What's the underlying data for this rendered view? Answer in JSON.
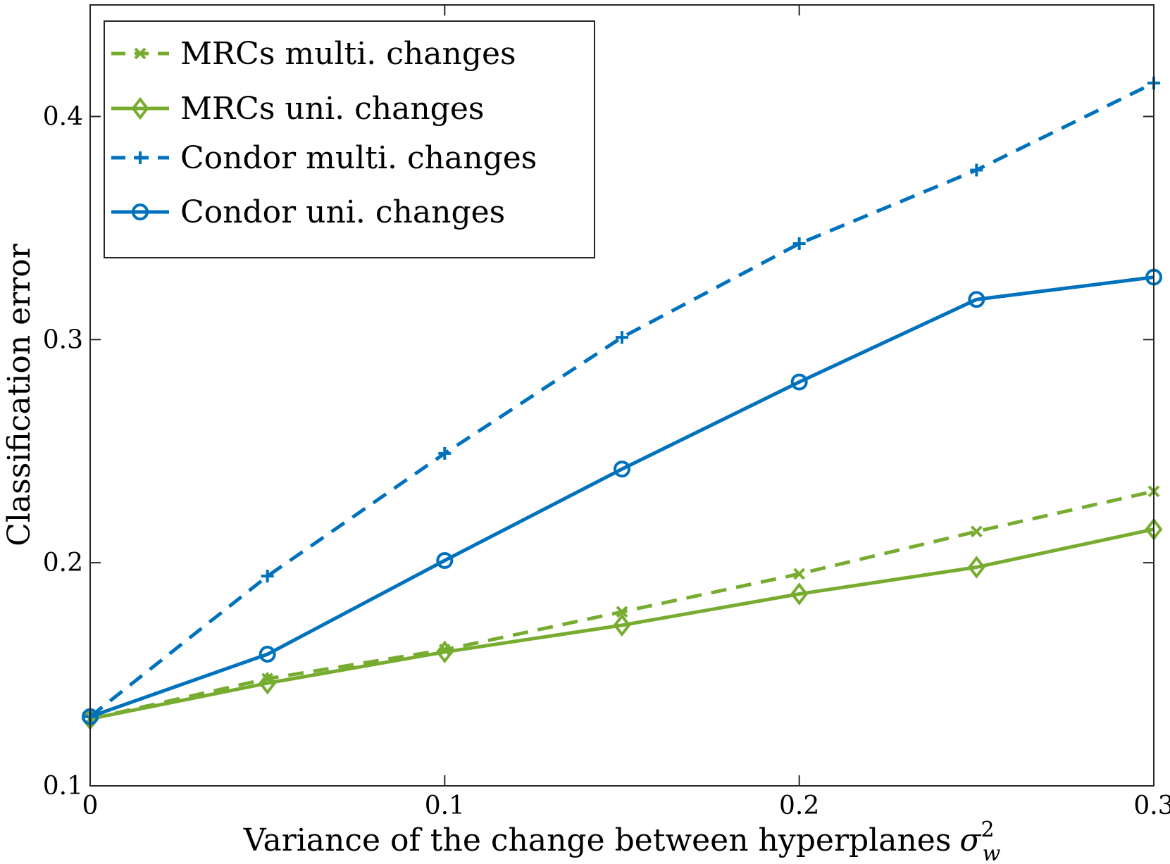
{
  "chart_data": {
    "type": "line",
    "xlabel": "Variance of the change between hyperplanes",
    "xlabel_symbol": "σ",
    "xlabel_sub": "w",
    "xlabel_sup": "2",
    "ylabel": "Classification error",
    "xlim": [
      0,
      0.3
    ],
    "ylim": [
      0.1,
      0.45
    ],
    "x_ticks": [
      0,
      0.1,
      0.2,
      0.3
    ],
    "x_tick_labels": [
      "0",
      "0.1",
      "0.2",
      "0.3"
    ],
    "y_ticks": [
      0.1,
      0.2,
      0.3,
      0.4
    ],
    "y_tick_labels": [
      "0.1",
      "0.2",
      "0.3",
      "0.4"
    ],
    "grid": false,
    "legend_position": "top-left",
    "x": [
      0,
      0.05,
      0.1,
      0.15,
      0.2,
      0.25,
      0.3
    ],
    "series": [
      {
        "name": "MRCs multi. changes",
        "color": "#77ac30",
        "dash": "dashed",
        "marker": "x",
        "values": [
          0.13,
          0.148,
          0.161,
          0.178,
          0.195,
          0.214,
          0.232
        ]
      },
      {
        "name": "MRCs uni. changes",
        "color": "#77ac30",
        "dash": "solid",
        "marker": "diamond",
        "values": [
          0.13,
          0.146,
          0.16,
          0.172,
          0.186,
          0.198,
          0.215
        ]
      },
      {
        "name": "Condor multi. changes",
        "color": "#0072bd",
        "dash": "dashed",
        "marker": "plus",
        "values": [
          0.131,
          0.194,
          0.249,
          0.301,
          0.343,
          0.376,
          0.415
        ]
      },
      {
        "name": "Condor uni. changes",
        "color": "#0072bd",
        "dash": "solid",
        "marker": "circle",
        "values": [
          0.131,
          0.159,
          0.201,
          0.242,
          0.281,
          0.318,
          0.328
        ]
      }
    ]
  }
}
